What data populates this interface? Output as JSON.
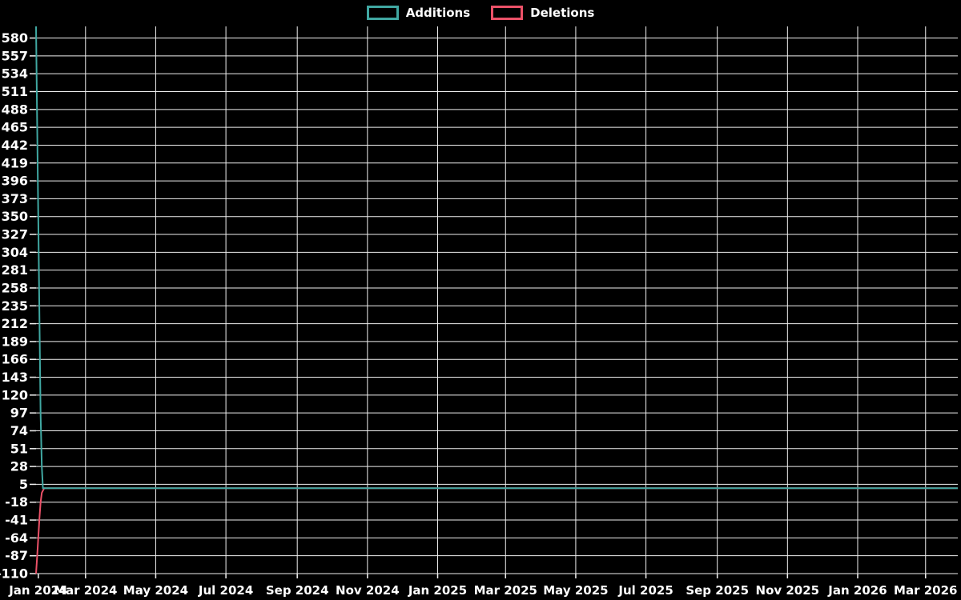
{
  "page": {
    "background_color": "#000000",
    "text_color": "#ffffff",
    "grid_color": "#f0f0f0"
  },
  "legend": {
    "items": [
      {
        "label": "Additions",
        "color": "#40a8a2"
      },
      {
        "label": "Deletions",
        "color": "#ec5168"
      }
    ]
  },
  "chart_data": {
    "type": "line",
    "title": "",
    "xlabel": "",
    "ylabel": "",
    "grid": true,
    "legend_position": "top-center",
    "x_axis": {
      "domain_start": "2024-01-18",
      "domain_end": "2026-03-29",
      "ticks": [
        {
          "label": "Jan 2024",
          "date": "2024-01-20"
        },
        {
          "label": "Mar 2024",
          "date": "2024-03-01"
        },
        {
          "label": "May 2024",
          "date": "2024-05-01"
        },
        {
          "label": "Jul 2024",
          "date": "2024-07-01"
        },
        {
          "label": "Sep 2024",
          "date": "2024-09-01"
        },
        {
          "label": "Nov 2024",
          "date": "2024-11-01"
        },
        {
          "label": "Jan 2025",
          "date": "2025-01-01"
        },
        {
          "label": "Mar 2025",
          "date": "2025-03-01"
        },
        {
          "label": "May 2025",
          "date": "2025-05-01"
        },
        {
          "label": "Jul 2025",
          "date": "2025-07-01"
        },
        {
          "label": "Sep 2025",
          "date": "2025-09-01"
        },
        {
          "label": "Nov 2025",
          "date": "2025-11-01"
        },
        {
          "label": "Jan 2026",
          "date": "2026-01-01"
        },
        {
          "label": "Mar 2026",
          "date": "2026-03-01"
        }
      ]
    },
    "y_axis": {
      "min": -110,
      "max": 595,
      "tick_values": [
        580,
        557,
        534,
        511,
        488,
        465,
        442,
        419,
        396,
        373,
        350,
        327,
        304,
        281,
        258,
        235,
        212,
        189,
        166,
        143,
        120,
        97,
        74,
        51,
        28,
        5,
        -18,
        -41,
        -64,
        -87,
        -110
      ]
    },
    "series": [
      {
        "name": "Additions",
        "color": "#40a8a2",
        "points": [
          {
            "date": "2024-01-18",
            "value": 595
          },
          {
            "date": "2024-01-19",
            "value": 470
          },
          {
            "date": "2024-01-20",
            "value": 340
          },
          {
            "date": "2024-01-21",
            "value": 215
          },
          {
            "date": "2024-01-22",
            "value": 95
          },
          {
            "date": "2024-01-23",
            "value": 28
          },
          {
            "date": "2024-01-24",
            "value": 0
          },
          {
            "date": "2026-03-29",
            "value": 0
          }
        ]
      },
      {
        "name": "Deletions",
        "color": "#ec5168",
        "points": [
          {
            "date": "2024-01-18",
            "value": -110
          },
          {
            "date": "2024-01-19",
            "value": -88
          },
          {
            "date": "2024-01-20",
            "value": -62
          },
          {
            "date": "2024-01-21",
            "value": -38
          },
          {
            "date": "2024-01-22",
            "value": -18
          },
          {
            "date": "2024-01-23",
            "value": -6
          },
          {
            "date": "2024-01-25",
            "value": 0
          },
          {
            "date": "2026-03-29",
            "value": 0
          }
        ]
      }
    ]
  }
}
